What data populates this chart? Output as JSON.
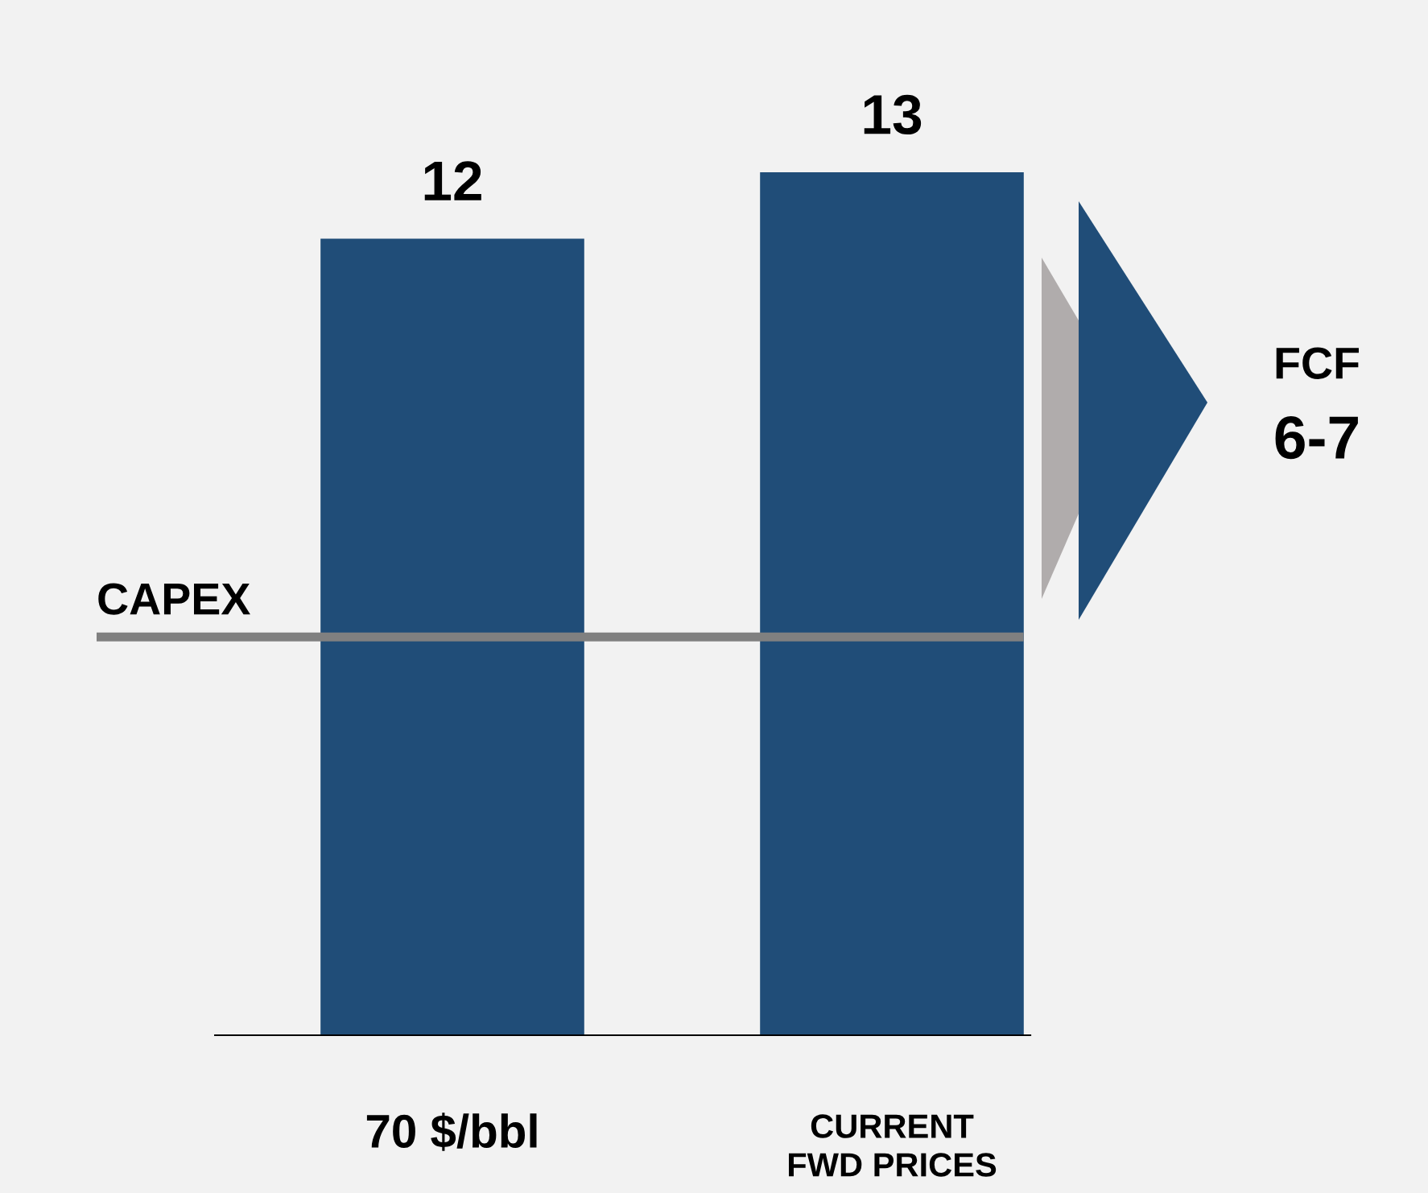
{
  "chart_data": {
    "type": "bar",
    "categories": [
      "70 $/bbl",
      "CURRENT\nFWD PRICES"
    ],
    "values": [
      12,
      13
    ],
    "color": "#204d78",
    "data_labels": true,
    "tick_labels": "x",
    "grid": false,
    "ref_lines": [
      {
        "axis": "y",
        "value": 6,
        "label": "CAPEX",
        "color": "#808080"
      }
    ],
    "annotations": [
      "FCF",
      "6-7"
    ]
  }
}
